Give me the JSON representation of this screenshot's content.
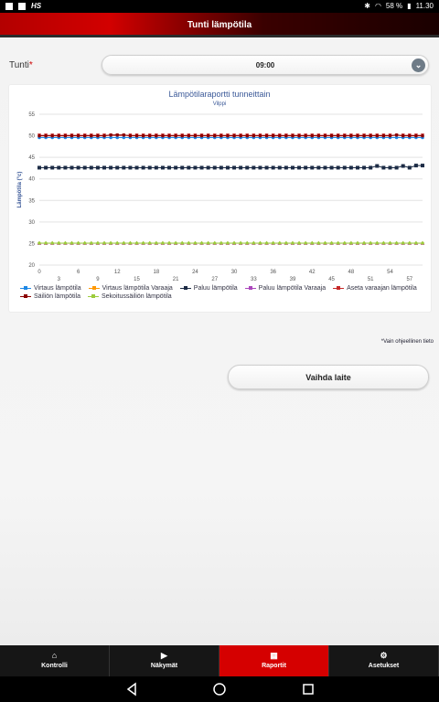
{
  "status_bar": {
    "left_text": "HS",
    "battery": "58 %",
    "time": "11.30"
  },
  "app_bar": {
    "title": "Tunti lämpötila"
  },
  "form": {
    "tunti_label": "Tunti",
    "required_mark": "*",
    "tunti_value": "09:00"
  },
  "chart_data": {
    "type": "line",
    "title": "Lämpötilaraportti tunneittain",
    "subtitle": "Vilppi",
    "ylabel": "Lämpötila (°c)",
    "ylim": [
      20,
      55
    ],
    "yticks": [
      20,
      25,
      30,
      35,
      40,
      45,
      50,
      55
    ],
    "xlim": [
      0,
      59
    ],
    "xticks_top": [
      "0",
      "6",
      "12",
      "18",
      "24",
      "30",
      "36",
      "42",
      "48",
      "54"
    ],
    "xticks_bottom": [
      "3",
      "9",
      "15",
      "21",
      "27",
      "33",
      "39",
      "45",
      "51",
      "57"
    ],
    "grid": true,
    "legend_position": "bottom",
    "series": [
      {
        "name": "Virtaus lämpötila",
        "color": "#1e88e5",
        "marker": "circle",
        "values": [
          49.6
        ]
      },
      {
        "name": "Virtaus lämpötila Varaaja",
        "color": "#ff9800",
        "marker": "triangle",
        "values": [
          25.1
        ]
      },
      {
        "name": "Paluu lämpötila",
        "color": "#1c2b45",
        "marker": "square",
        "values": [
          42.6,
          42.6,
          42.6,
          42.6,
          42.6,
          42.6,
          42.6,
          42.6,
          42.6,
          42.6,
          42.6,
          42.6,
          42.6,
          42.6,
          42.6,
          42.6,
          42.6,
          42.6,
          42.6,
          42.6,
          42.6,
          42.6,
          42.6,
          42.6,
          42.6,
          42.6,
          42.6,
          42.6,
          42.6,
          42.6,
          42.6,
          42.6,
          42.6,
          42.6,
          42.6,
          42.6,
          42.6,
          42.6,
          42.6,
          42.6,
          42.6,
          42.6,
          42.6,
          42.6,
          42.6,
          42.6,
          42.6,
          42.6,
          42.6,
          42.6,
          42.6,
          42.6,
          43.0,
          42.6,
          42.6,
          42.6,
          43.0,
          42.6,
          43.1,
          43.1
        ]
      },
      {
        "name": "Paluu lämpötila Varaaja",
        "color": "#ab47bc",
        "marker": "triangle",
        "values": [
          25.1
        ]
      },
      {
        "name": "Aseta varaajan lämpötila",
        "color": "#c62828",
        "marker": "triangle-down",
        "values": [
          50.1
        ]
      },
      {
        "name": "Säiliön lämpötila",
        "color": "#8b0000",
        "marker": "circle",
        "values": [
          50.0,
          50.0,
          50.0,
          50.0,
          50.0,
          50.0,
          50.0,
          50.0,
          50.0,
          50.0,
          50.0,
          50.2,
          50.2,
          50.2,
          50.0,
          50.0,
          50.0,
          50.0,
          50.0,
          50.0,
          50.0,
          50.0,
          50.0,
          50.0,
          50.0,
          50.0,
          50.0,
          50.0,
          50.0,
          50.0,
          50.0,
          50.0,
          50.0,
          50.0,
          50.0,
          50.0,
          50.0,
          50.0,
          50.0,
          50.0,
          50.0,
          50.0,
          50.0,
          50.0,
          50.0,
          50.0,
          50.0,
          50.0,
          50.0,
          50.0,
          50.0,
          50.0,
          50.0,
          50.0,
          50.0,
          50.2,
          50.0,
          50.0,
          50.0,
          50.0
        ]
      },
      {
        "name": "Sekoitussäiliön lämpötila",
        "color": "#9ccc3c",
        "marker": "diamond",
        "values": [
          25.1
        ]
      }
    ]
  },
  "note": "*Vain ohjeellinen tieto",
  "vaihda_button": "Vaihda laite",
  "tabs": [
    {
      "label": "Kontrolli",
      "icon": "home-icon"
    },
    {
      "label": "Näkymät",
      "icon": "video-icon"
    },
    {
      "label": "Raportit",
      "icon": "grid-icon",
      "active": true
    },
    {
      "label": "Asetukset",
      "icon": "gear-icon"
    }
  ]
}
